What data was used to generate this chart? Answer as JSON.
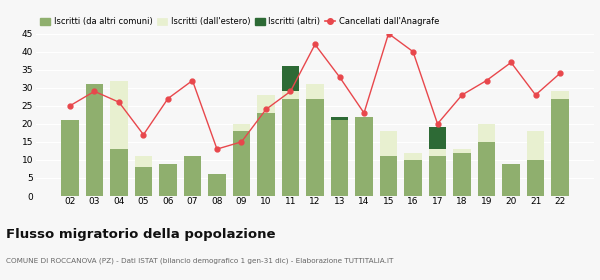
{
  "years": [
    "02",
    "03",
    "04",
    "05",
    "06",
    "07",
    "08",
    "09",
    "10",
    "11",
    "12",
    "13",
    "14",
    "15",
    "16",
    "17",
    "18",
    "19",
    "20",
    "21",
    "22"
  ],
  "iscritti_comuni": [
    21,
    31,
    13,
    8,
    9,
    11,
    6,
    18,
    23,
    27,
    27,
    21,
    22,
    11,
    10,
    11,
    12,
    15,
    9,
    10,
    27
  ],
  "iscritti_estero": [
    0,
    0,
    19,
    3,
    0,
    0,
    0,
    2,
    5,
    2,
    4,
    0,
    0,
    7,
    2,
    2,
    1,
    5,
    0,
    8,
    2
  ],
  "iscritti_altri": [
    0,
    0,
    0,
    0,
    0,
    0,
    0,
    0,
    0,
    7,
    0,
    1,
    0,
    0,
    0,
    6,
    0,
    0,
    0,
    0,
    0
  ],
  "cancellati": [
    25,
    29,
    26,
    17,
    27,
    32,
    13,
    15,
    24,
    29,
    42,
    33,
    23,
    45,
    40,
    20,
    28,
    32,
    37,
    28,
    34
  ],
  "color_comuni": "#8faf6e",
  "color_estero": "#e8f0d0",
  "color_altri": "#2d6a35",
  "color_cancellati": "#e8474c",
  "legend_labels": [
    "Iscritti (da altri comuni)",
    "Iscritti (dall'estero)",
    "Iscritti (altri)",
    "Cancellati dall'Anagrafe"
  ],
  "ylim": [
    0,
    45
  ],
  "yticks": [
    0,
    5,
    10,
    15,
    20,
    25,
    30,
    35,
    40,
    45
  ],
  "title": "Flusso migratorio della popolazione",
  "subtitle": "COMUNE DI ROCCANOVA (PZ) - Dati ISTAT (bilancio demografico 1 gen-31 dic) - Elaborazione TUTTITALIA.IT",
  "bg_color": "#f7f7f7"
}
